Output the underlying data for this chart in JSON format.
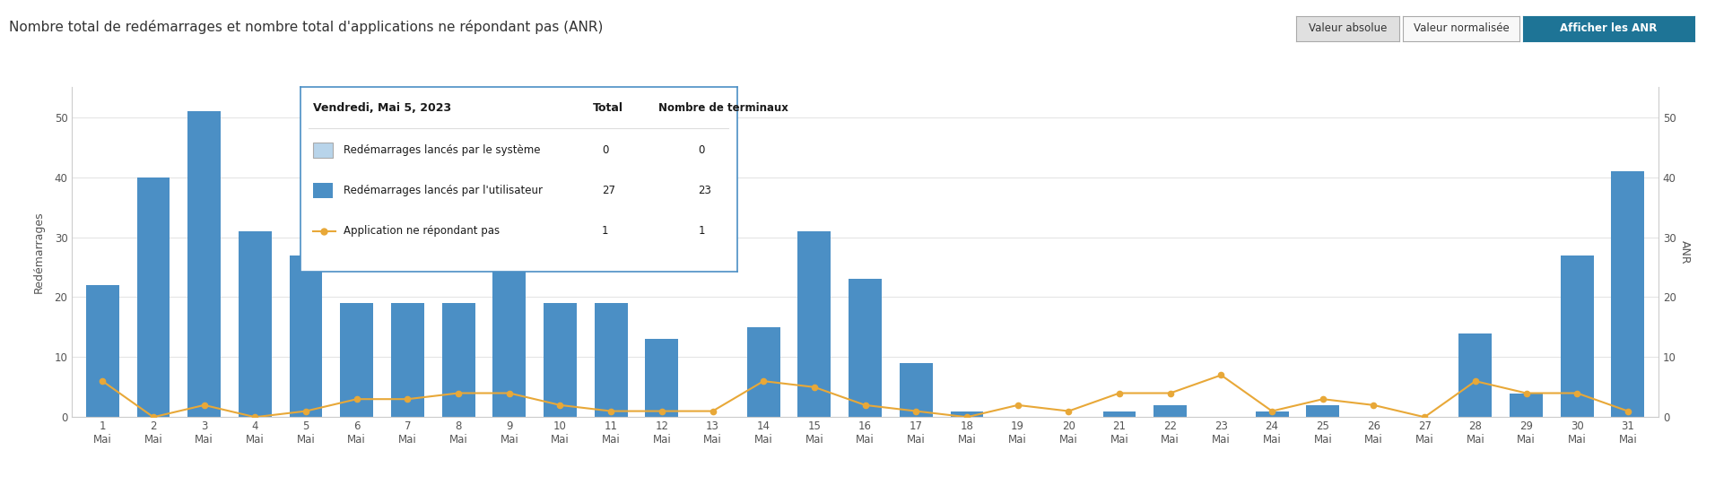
{
  "title": "Nombre total de redémarrages et nombre total d'applications ne répondant pas (ANR)",
  "days": [
    1,
    2,
    3,
    4,
    5,
    6,
    7,
    8,
    9,
    10,
    11,
    12,
    13,
    14,
    15,
    16,
    17,
    18,
    19,
    20,
    21,
    22,
    23,
    24,
    25,
    26,
    27,
    28,
    29,
    30,
    31
  ],
  "user_restarts": [
    22,
    40,
    51,
    31,
    27,
    19,
    19,
    19,
    42,
    19,
    19,
    13,
    0,
    15,
    31,
    23,
    9,
    1,
    0,
    0,
    1,
    2,
    0,
    1,
    2,
    0,
    0,
    14,
    4,
    27,
    41
  ],
  "system_restarts": [
    0,
    0,
    0,
    0,
    0,
    0,
    0,
    0,
    0,
    0,
    0,
    0,
    0,
    0,
    0,
    0,
    0,
    0,
    0,
    0,
    0,
    0,
    0,
    0,
    0,
    0,
    0,
    0,
    0,
    0,
    0
  ],
  "anr": [
    6,
    0,
    2,
    0,
    1,
    3,
    3,
    4,
    4,
    2,
    1,
    1,
    1,
    6,
    5,
    2,
    1,
    0,
    2,
    1,
    4,
    4,
    7,
    1,
    3,
    2,
    0,
    6,
    4,
    4,
    1
  ],
  "ylabel_left": "Redémarrages",
  "ylabel_right": "ANR",
  "ylim_left": [
    0,
    55
  ],
  "ylim_right": [
    0,
    55
  ],
  "yticks": [
    0,
    10,
    20,
    30,
    40,
    50
  ],
  "bar_color_user": "#4b8fc5",
  "bar_color_system": "#b8d4ea",
  "line_color": "#e8a838",
  "marker_color": "#e8a838",
  "background_color": "#ffffff",
  "grid_color": "#e5e5e5",
  "legend_anr": "Application ne répondant pas",
  "legend_system": "Redémarrages lancés par le système",
  "legend_user": "Redémarrages lancés par l'utilisateur",
  "tooltip_title": "Vendredi, Mai 5, 2023",
  "tooltip_col1": "Total",
  "tooltip_col2": "Nombre de terminaux",
  "tooltip_system_vals": [
    0,
    0
  ],
  "tooltip_user_vals": [
    27,
    23
  ],
  "tooltip_anr_vals": [
    1,
    1
  ],
  "btn1": "Valeur absolue",
  "btn2": "Valeur normalisée",
  "btn3": "Afficher les ANR",
  "title_fontsize": 11,
  "axis_label_fontsize": 9,
  "tick_fontsize": 8.5,
  "legend_fontsize": 9
}
